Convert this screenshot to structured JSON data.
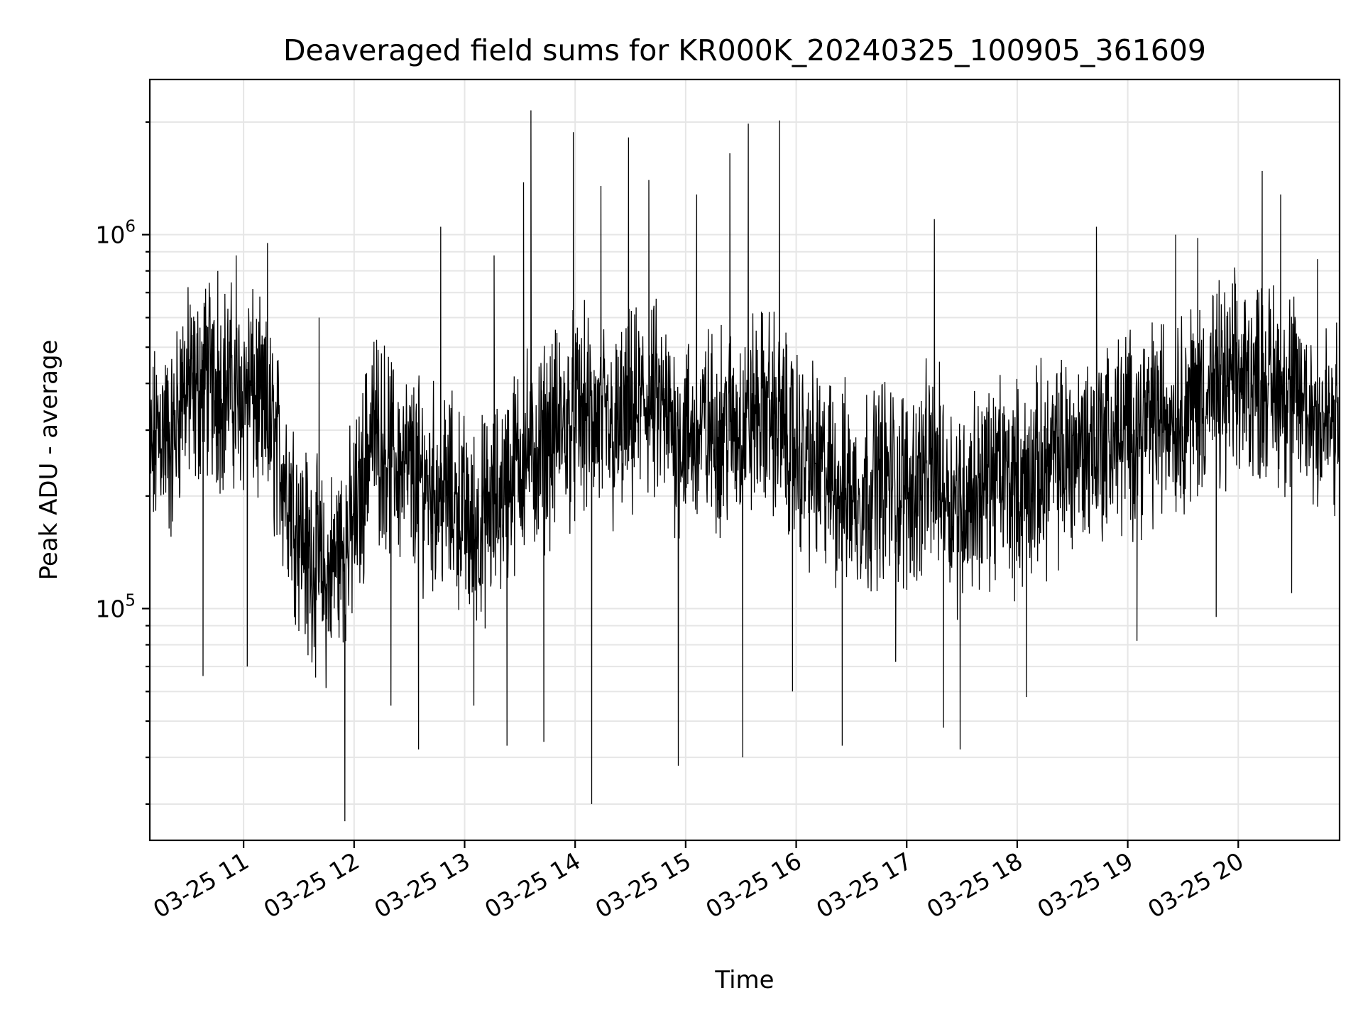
{
  "chart_data": {
    "type": "line",
    "title": "Deaveraged field sums for KR000K_20240325_100905_361609",
    "xlabel": "Time",
    "ylabel": "Peak ADU - average",
    "x_scale": "time",
    "y_scale": "log",
    "xlim": [
      "2024-03-25 10:09:05",
      "2024-03-25 20:55:00"
    ],
    "ylim": [
      24000,
      2600000
    ],
    "grid": true,
    "legend": "none",
    "line_color": "#000000",
    "grid_color": "#e6e6e6",
    "x_ticks": [
      {
        "value": "2024-03-25 11:00",
        "label": "03-25 11"
      },
      {
        "value": "2024-03-25 12:00",
        "label": "03-25 12"
      },
      {
        "value": "2024-03-25 13:00",
        "label": "03-25 13"
      },
      {
        "value": "2024-03-25 14:00",
        "label": "03-25 14"
      },
      {
        "value": "2024-03-25 15:00",
        "label": "03-25 15"
      },
      {
        "value": "2024-03-25 16:00",
        "label": "03-25 16"
      },
      {
        "value": "2024-03-25 17:00",
        "label": "03-25 17"
      },
      {
        "value": "2024-03-25 18:00",
        "label": "03-25 18"
      },
      {
        "value": "2024-03-25 19:00",
        "label": "03-25 19"
      },
      {
        "value": "2024-03-25 20:00",
        "label": "03-25 20"
      }
    ],
    "y_ticks": [
      {
        "value": 100000,
        "base": "10",
        "exp": "5"
      },
      {
        "value": 1000000,
        "base": "10",
        "exp": "6"
      }
    ],
    "series": [
      {
        "points": [
          [
            "2024-03-25 10:09",
            250000
          ],
          [
            "2024-03-25 10:15",
            330000
          ],
          [
            "2024-03-25 10:21",
            280000
          ],
          [
            "2024-03-25 10:27",
            420000
          ],
          [
            "2024-03-25 10:33",
            380000
          ],
          [
            "2024-03-25 10:39",
            450000
          ],
          [
            "2024-03-25 10:45",
            400000
          ],
          [
            "2024-03-25 10:51",
            430000
          ],
          [
            "2024-03-25 10:57",
            380000
          ],
          [
            "2024-03-25 11:03",
            420000
          ],
          [
            "2024-03-25 11:09",
            350000
          ],
          [
            "2024-03-25 11:15",
            320000
          ],
          [
            "2024-03-25 11:21",
            250000
          ],
          [
            "2024-03-25 11:27",
            200000
          ],
          [
            "2024-03-25 11:33",
            160000
          ],
          [
            "2024-03-25 11:39",
            140000
          ],
          [
            "2024-03-25 11:45",
            120000
          ],
          [
            "2024-03-25 11:51",
            150000
          ],
          [
            "2024-03-25 11:57",
            160000
          ],
          [
            "2024-03-25 12:03",
            200000
          ],
          [
            "2024-03-25 12:09",
            320000
          ],
          [
            "2024-03-25 12:15",
            300000
          ],
          [
            "2024-03-25 12:21",
            260000
          ],
          [
            "2024-03-25 12:27",
            250000
          ],
          [
            "2024-03-25 12:33",
            240000
          ],
          [
            "2024-03-25 12:39",
            230000
          ],
          [
            "2024-03-25 12:45",
            220000
          ],
          [
            "2024-03-25 12:51",
            210000
          ],
          [
            "2024-03-25 12:57",
            200000
          ],
          [
            "2024-03-25 13:03",
            170000
          ],
          [
            "2024-03-25 13:09",
            180000
          ],
          [
            "2024-03-25 13:15",
            190000
          ],
          [
            "2024-03-25 13:21",
            220000
          ],
          [
            "2024-03-25 13:27",
            250000
          ],
          [
            "2024-03-25 13:33",
            280000
          ],
          [
            "2024-03-25 13:39",
            270000
          ],
          [
            "2024-03-25 13:45",
            300000
          ],
          [
            "2024-03-25 13:51",
            320000
          ],
          [
            "2024-03-25 13:57",
            330000
          ],
          [
            "2024-03-25 14:03",
            350000
          ],
          [
            "2024-03-25 14:09",
            340000
          ],
          [
            "2024-03-25 14:15",
            320000
          ],
          [
            "2024-03-25 14:21",
            300000
          ],
          [
            "2024-03-25 14:27",
            330000
          ],
          [
            "2024-03-25 14:33",
            350000
          ],
          [
            "2024-03-25 14:39",
            380000
          ],
          [
            "2024-03-25 14:45",
            360000
          ],
          [
            "2024-03-25 14:51",
            330000
          ],
          [
            "2024-03-25 14:57",
            310000
          ],
          [
            "2024-03-25 15:03",
            300000
          ],
          [
            "2024-03-25 15:09",
            320000
          ],
          [
            "2024-03-25 15:15",
            310000
          ],
          [
            "2024-03-25 15:21",
            330000
          ],
          [
            "2024-03-25 15:27",
            320000
          ],
          [
            "2024-03-25 15:33",
            340000
          ],
          [
            "2024-03-25 15:39",
            350000
          ],
          [
            "2024-03-25 15:45",
            360000
          ],
          [
            "2024-03-25 15:51",
            330000
          ],
          [
            "2024-03-25 15:57",
            290000
          ],
          [
            "2024-03-25 16:03",
            270000
          ],
          [
            "2024-03-25 16:09",
            250000
          ],
          [
            "2024-03-25 16:15",
            240000
          ],
          [
            "2024-03-25 16:21",
            230000
          ],
          [
            "2024-03-25 16:27",
            220000
          ],
          [
            "2024-03-25 16:33",
            210000
          ],
          [
            "2024-03-25 16:39",
            220000
          ],
          [
            "2024-03-25 16:45",
            240000
          ],
          [
            "2024-03-25 16:51",
            230000
          ],
          [
            "2024-03-25 16:57",
            220000
          ],
          [
            "2024-03-25 17:03",
            220000
          ],
          [
            "2024-03-25 17:09",
            240000
          ],
          [
            "2024-03-25 17:15",
            250000
          ],
          [
            "2024-03-25 17:21",
            230000
          ],
          [
            "2024-03-25 17:27",
            200000
          ],
          [
            "2024-03-25 17:33",
            210000
          ],
          [
            "2024-03-25 17:39",
            220000
          ],
          [
            "2024-03-25 17:45",
            230000
          ],
          [
            "2024-03-25 17:51",
            240000
          ],
          [
            "2024-03-25 17:57",
            230000
          ],
          [
            "2024-03-25 18:03",
            220000
          ],
          [
            "2024-03-25 18:09",
            240000
          ],
          [
            "2024-03-25 18:15",
            250000
          ],
          [
            "2024-03-25 18:21",
            260000
          ],
          [
            "2024-03-25 18:27",
            270000
          ],
          [
            "2024-03-25 18:33",
            280000
          ],
          [
            "2024-03-25 18:39",
            290000
          ],
          [
            "2024-03-25 18:45",
            300000
          ],
          [
            "2024-03-25 18:51",
            300000
          ],
          [
            "2024-03-25 18:57",
            310000
          ],
          [
            "2024-03-25 19:03",
            320000
          ],
          [
            "2024-03-25 19:09",
            330000
          ],
          [
            "2024-03-25 19:15",
            340000
          ],
          [
            "2024-03-25 19:21",
            350000
          ],
          [
            "2024-03-25 19:27",
            360000
          ],
          [
            "2024-03-25 19:33",
            370000
          ],
          [
            "2024-03-25 19:39",
            380000
          ],
          [
            "2024-03-25 19:45",
            400000
          ],
          [
            "2024-03-25 19:51",
            410000
          ],
          [
            "2024-03-25 19:57",
            420000
          ],
          [
            "2024-03-25 20:03",
            430000
          ],
          [
            "2024-03-25 20:09",
            440000
          ],
          [
            "2024-03-25 20:15",
            430000
          ],
          [
            "2024-03-25 20:21",
            420000
          ],
          [
            "2024-03-25 20:27",
            400000
          ],
          [
            "2024-03-25 20:33",
            380000
          ],
          [
            "2024-03-25 20:39",
            360000
          ],
          [
            "2024-03-25 20:45",
            340000
          ],
          [
            "2024-03-25 20:51",
            320000
          ],
          [
            "2024-03-25 20:55",
            320000
          ]
        ],
        "spikes": [
          [
            "2024-03-25 10:31",
            650000
          ],
          [
            "2024-03-25 10:38",
            66000
          ],
          [
            "2024-03-25 10:46",
            800000
          ],
          [
            "2024-03-25 10:56",
            880000
          ],
          [
            "2024-03-25 11:02",
            70000
          ],
          [
            "2024-03-25 11:13",
            950000
          ],
          [
            "2024-03-25 11:35",
            75000
          ],
          [
            "2024-03-25 11:41",
            600000
          ],
          [
            "2024-03-25 11:55",
            27000
          ],
          [
            "2024-03-25 12:20",
            55000
          ],
          [
            "2024-03-25 12:35",
            42000
          ],
          [
            "2024-03-25 12:47",
            1050000
          ],
          [
            "2024-03-25 13:05",
            55000
          ],
          [
            "2024-03-25 13:16",
            880000
          ],
          [
            "2024-03-25 13:23",
            43000
          ],
          [
            "2024-03-25 13:32",
            1380000
          ],
          [
            "2024-03-25 13:36",
            2150000
          ],
          [
            "2024-03-25 13:43",
            44000
          ],
          [
            "2024-03-25 13:59",
            1880000
          ],
          [
            "2024-03-25 14:09",
            30000
          ],
          [
            "2024-03-25 14:14",
            1350000
          ],
          [
            "2024-03-25 14:29",
            1820000
          ],
          [
            "2024-03-25 14:40",
            1400000
          ],
          [
            "2024-03-25 14:56",
            38000
          ],
          [
            "2024-03-25 15:06",
            1280000
          ],
          [
            "2024-03-25 15:24",
            1650000
          ],
          [
            "2024-03-25 15:31",
            40000
          ],
          [
            "2024-03-25 15:34",
            1980000
          ],
          [
            "2024-03-25 15:51",
            2020000
          ],
          [
            "2024-03-25 15:58",
            60000
          ],
          [
            "2024-03-25 16:25",
            43000
          ],
          [
            "2024-03-25 16:54",
            72000
          ],
          [
            "2024-03-25 17:15",
            1100000
          ],
          [
            "2024-03-25 17:20",
            48000
          ],
          [
            "2024-03-25 17:29",
            42000
          ],
          [
            "2024-03-25 18:05",
            58000
          ],
          [
            "2024-03-25 18:43",
            1050000
          ],
          [
            "2024-03-25 19:05",
            82000
          ],
          [
            "2024-03-25 19:26",
            1000000
          ],
          [
            "2024-03-25 19:38",
            980000
          ],
          [
            "2024-03-25 19:48",
            95000
          ],
          [
            "2024-03-25 20:13",
            1480000
          ],
          [
            "2024-03-25 20:23",
            1280000
          ],
          [
            "2024-03-25 20:29",
            110000
          ],
          [
            "2024-03-25 20:43",
            860000
          ]
        ],
        "noise_band": [
          0.45,
          2.0
        ]
      }
    ]
  }
}
